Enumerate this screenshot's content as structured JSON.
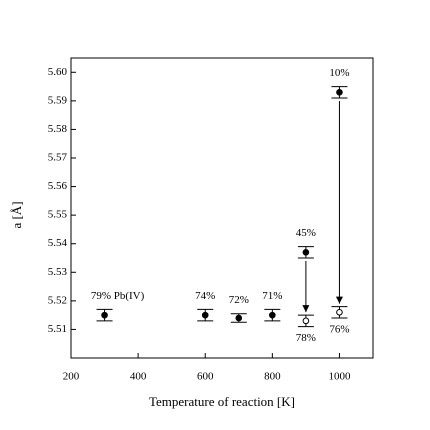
{
  "chart_data": {
    "type": "scatter",
    "xlabel": "Temperature of reaction [K]",
    "ylabel": "a [Å]",
    "xlim": [
      200,
      1100
    ],
    "xticks": [
      200,
      400,
      600,
      800,
      1000
    ],
    "ylim": [
      5.5,
      5.605
    ],
    "yticks": [
      5.51,
      5.52,
      5.53,
      5.54,
      5.55,
      5.56,
      5.57,
      5.58,
      5.59,
      {
        "value": 5.6,
        "label": "5.60"
      }
    ],
    "series": [
      {
        "marker": "filled",
        "color": "#000000",
        "x": [
          300,
          600,
          700,
          800,
          900,
          1000
        ],
        "values": [
          5.515,
          5.515,
          5.514,
          5.515,
          5.537,
          5.593
        ],
        "errors": [
          0.002,
          0.002,
          0.0015,
          0.002,
          0.002,
          0.002
        ],
        "point_labels": [
          "79% Pb(IV)",
          "74%",
          "72%",
          "71%",
          "45%",
          "10%"
        ]
      },
      {
        "marker": "open",
        "color": "#000000",
        "x": [
          900,
          1000
        ],
        "values": [
          5.513,
          5.516
        ],
        "errors": [
          0.002,
          0.002
        ],
        "point_labels": [
          "78%",
          "76%"
        ]
      }
    ]
  }
}
